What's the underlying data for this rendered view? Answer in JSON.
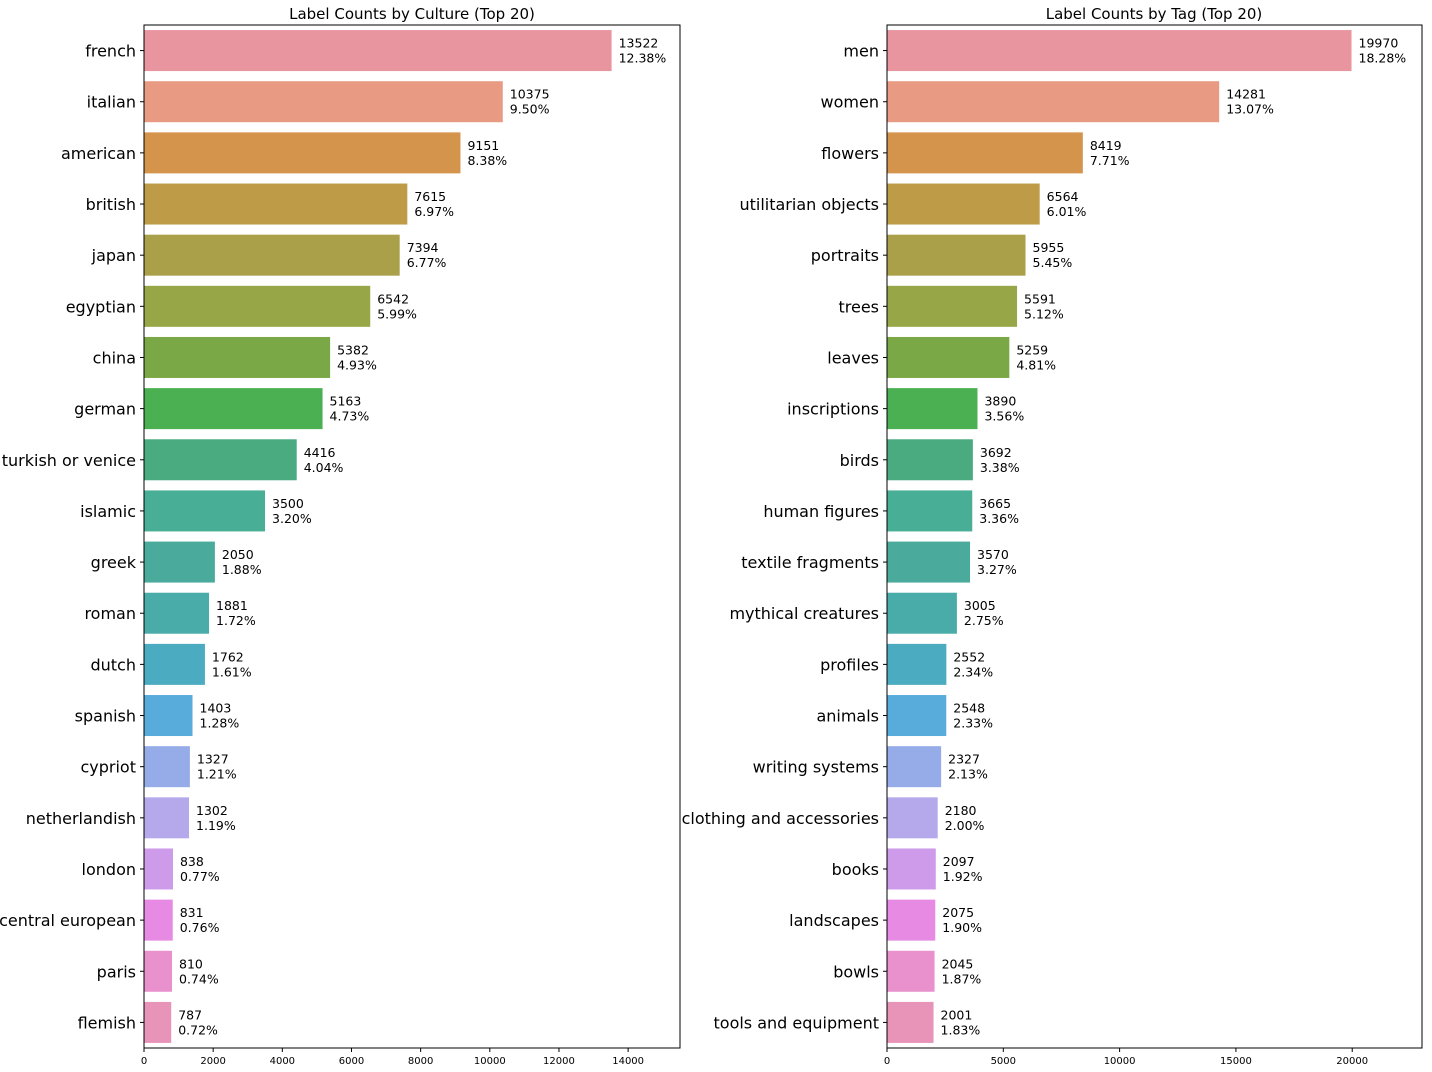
{
  "chart_data": [
    {
      "type": "bar",
      "orientation": "horizontal",
      "title": "Label Counts by Culture (Top 20)",
      "xlabel": "",
      "ylabel": "",
      "xlim": [
        0,
        15500
      ],
      "xticks": [
        0,
        2000,
        4000,
        6000,
        8000,
        10000,
        12000,
        14000
      ],
      "xtick_labels": [
        "0",
        "2000",
        "4000",
        "6000",
        "8000",
        "10000",
        "12000",
        "14000"
      ],
      "grid": false,
      "categories": [
        "french",
        "italian",
        "american",
        "british",
        "japan",
        "egyptian",
        "china",
        "german",
        "turkish or venice",
        "islamic",
        "greek",
        "roman",
        "dutch",
        "spanish",
        "cypriot",
        "netherlandish",
        "london",
        "central european",
        "paris",
        "flemish"
      ],
      "values": [
        13522,
        10375,
        9151,
        7615,
        7394,
        6542,
        5382,
        5163,
        4416,
        3500,
        2050,
        1881,
        1762,
        1403,
        1327,
        1302,
        838,
        831,
        810,
        787
      ],
      "value_labels": [
        "13522",
        "10375",
        "9151",
        "7615",
        "7394",
        "6542",
        "5382",
        "5163",
        "4416",
        "3500",
        "2050",
        "1881",
        "1762",
        "1403",
        "1327",
        "1302",
        "838",
        "831",
        "810",
        "787"
      ],
      "percent_labels": [
        "12.38%",
        "9.50%",
        "8.38%",
        "6.97%",
        "6.77%",
        "5.99%",
        "4.93%",
        "4.73%",
        "4.04%",
        "3.20%",
        "1.88%",
        "1.72%",
        "1.61%",
        "1.28%",
        "1.21%",
        "1.19%",
        "0.77%",
        "0.76%",
        "0.74%",
        "0.72%"
      ],
      "colors": [
        "#e8959f",
        "#e89a82",
        "#d4944c",
        "#bd9b47",
        "#aba04a",
        "#97a646",
        "#7ba846",
        "#4ab052",
        "#49ab7f",
        "#49ae96",
        "#4aab9c",
        "#4aaca8",
        "#4babc1",
        "#58acdb",
        "#96ace8",
        "#b5a9ec",
        "#cd9bea",
        "#e68ae4",
        "#e891cd",
        "#e894b9"
      ]
    },
    {
      "type": "bar",
      "orientation": "horizontal",
      "title": "Label Counts by Tag (Top 20)",
      "xlabel": "",
      "ylabel": "",
      "xlim": [
        0,
        23000
      ],
      "xticks": [
        0,
        5000,
        10000,
        15000,
        20000
      ],
      "xtick_labels": [
        "0",
        "5000",
        "10000",
        "15000",
        "20000"
      ],
      "grid": false,
      "categories": [
        "men",
        "women",
        "flowers",
        "utilitarian objects",
        "portraits",
        "trees",
        "leaves",
        "inscriptions",
        "birds",
        "human figures",
        "textile fragments",
        "mythical creatures",
        "profiles",
        "animals",
        "writing systems",
        "clothing and accessories",
        "books",
        "landscapes",
        "bowls",
        "tools and equipment"
      ],
      "values": [
        19970,
        14281,
        8419,
        6564,
        5955,
        5591,
        5259,
        3890,
        3692,
        3665,
        3570,
        3005,
        2552,
        2548,
        2327,
        2180,
        2097,
        2075,
        2045,
        2001
      ],
      "value_labels": [
        "19970",
        "14281",
        "8419",
        "6564",
        "5955",
        "5591",
        "5259",
        "3890",
        "3692",
        "3665",
        "3570",
        "3005",
        "2552",
        "2548",
        "2327",
        "2180",
        "2097",
        "2075",
        "2045",
        "2001"
      ],
      "percent_labels": [
        "18.28%",
        "13.07%",
        "7.71%",
        "6.01%",
        "5.45%",
        "5.12%",
        "4.81%",
        "3.56%",
        "3.38%",
        "3.36%",
        "3.27%",
        "2.75%",
        "2.34%",
        "2.33%",
        "2.13%",
        "2.00%",
        "1.92%",
        "1.90%",
        "1.87%",
        "1.83%"
      ],
      "colors": [
        "#e8959f",
        "#e89a82",
        "#d4944c",
        "#bd9b47",
        "#aba04a",
        "#97a646",
        "#7ba846",
        "#4ab052",
        "#49ab7f",
        "#49ae96",
        "#4aab9c",
        "#4aaca8",
        "#4babc1",
        "#58acdb",
        "#96ace8",
        "#b5a9ec",
        "#cd9bea",
        "#e68ae4",
        "#e891cd",
        "#e894b9"
      ]
    }
  ]
}
